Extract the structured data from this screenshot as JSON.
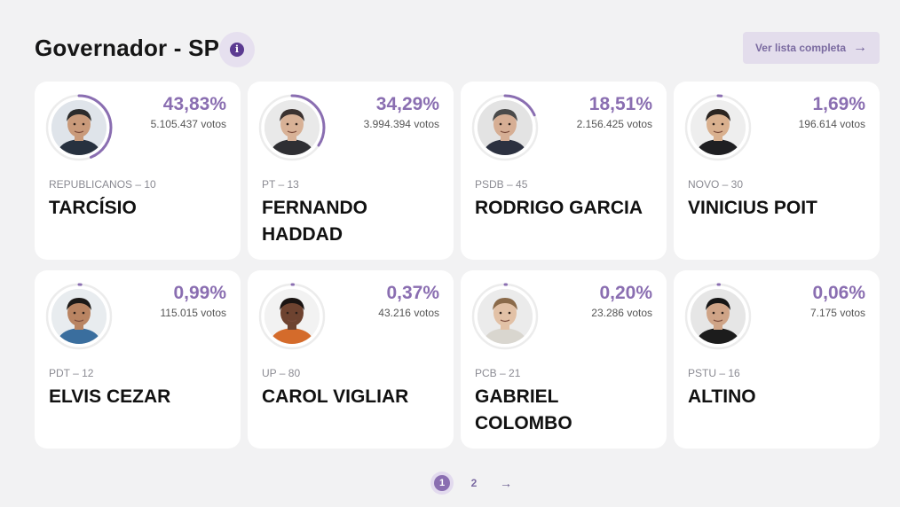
{
  "header": {
    "title": "Governador - SP",
    "info_icon": "info-icon",
    "list_button_label": "Ver lista completa",
    "list_button_icon": "arrow-right-icon"
  },
  "colors": {
    "accent": "#8a6eb1",
    "ring_track": "#ececec",
    "background": "#f2f2f3"
  },
  "candidates": [
    {
      "party": "REPUBLICANOS – 10",
      "name": "TARCÍSIO",
      "pct": "43,83%",
      "votes": "5.105.437 votos",
      "share": 0.4383
    },
    {
      "party": "PT – 13",
      "name": "FERNANDO HADDAD",
      "pct": "34,29%",
      "votes": "3.994.394 votos",
      "share": 0.3429
    },
    {
      "party": "PSDB – 45",
      "name": "RODRIGO GARCIA",
      "pct": "18,51%",
      "votes": "2.156.425 votos",
      "share": 0.1851
    },
    {
      "party": "NOVO – 30",
      "name": "VINICIUS POIT",
      "pct": "1,69%",
      "votes": "196.614 votos",
      "share": 0.0169
    },
    {
      "party": "PDT – 12",
      "name": "ELVIS CEZAR",
      "pct": "0,99%",
      "votes": "115.015 votos",
      "share": 0.0099
    },
    {
      "party": "UP – 80",
      "name": "CAROL VIGLIAR",
      "pct": "0,37%",
      "votes": "43.216 votos",
      "share": 0.0037
    },
    {
      "party": "PCB – 21",
      "name": "GABRIEL COLOMBO",
      "pct": "0,20%",
      "votes": "23.286 votos",
      "share": 0.002
    },
    {
      "party": "PSTU – 16",
      "name": "ALTINO",
      "pct": "0,06%",
      "votes": "7.175 votos",
      "share": 0.0006
    }
  ],
  "pagination": {
    "pages": [
      "1",
      "2"
    ],
    "current": "1",
    "next_icon": "arrow-right-icon"
  }
}
